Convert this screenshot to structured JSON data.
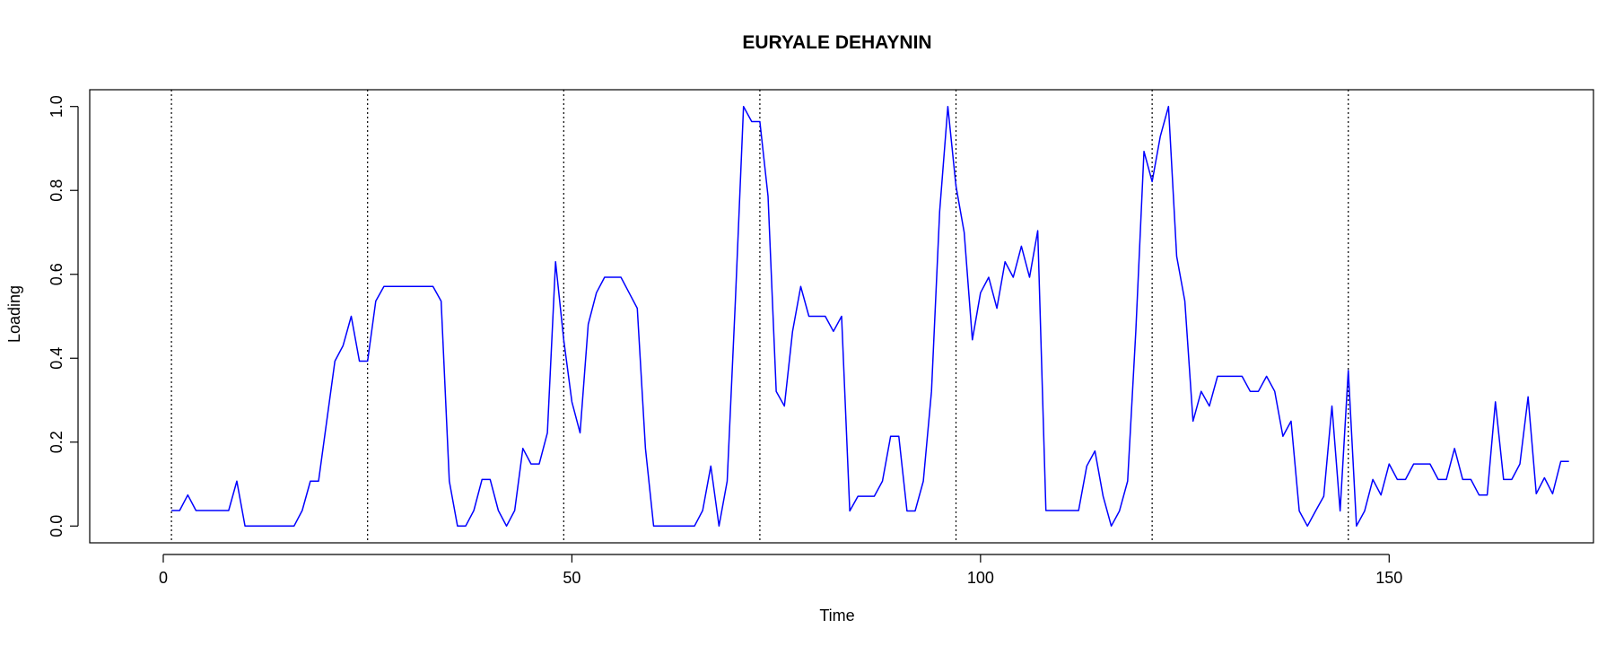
{
  "chart_data": {
    "type": "line",
    "title": "EURYALE DEHAYNIN",
    "xlabel": "Time",
    "ylabel": "Loading",
    "xlim": [
      -9,
      175
    ],
    "ylim": [
      -0.04,
      1.04
    ],
    "xticks": [
      0,
      50,
      100,
      150
    ],
    "yticks": [
      0.0,
      0.2,
      0.4,
      0.6,
      0.8,
      1.0
    ],
    "xtick_labels": [
      "0",
      "50",
      "100",
      "150"
    ],
    "ytick_labels": [
      "0.0",
      "0.2",
      "0.4",
      "0.6",
      "0.8",
      "1.0"
    ],
    "grid": false,
    "vertical_lines": [
      1,
      25,
      49,
      73,
      97,
      121,
      145
    ],
    "series": [
      {
        "color": "#0000ff",
        "x_start": 1,
        "values": [
          0.037,
          0.037,
          0.074,
          0.037,
          0.037,
          0.037,
          0.037,
          0.037,
          0.107,
          0.0,
          0.0,
          0.0,
          0.0,
          0.0,
          0.0,
          0.0,
          0.037,
          0.107,
          0.107,
          0.25,
          0.393,
          0.43,
          0.5,
          0.393,
          0.393,
          0.536,
          0.571,
          0.571,
          0.571,
          0.571,
          0.571,
          0.571,
          0.571,
          0.536,
          0.107,
          0.0,
          0.0,
          0.037,
          0.111,
          0.111,
          0.037,
          0.0,
          0.037,
          0.185,
          0.148,
          0.148,
          0.222,
          0.63,
          0.444,
          0.296,
          0.222,
          0.481,
          0.556,
          0.593,
          0.593,
          0.593,
          0.556,
          0.519,
          0.185,
          0.0,
          0.0,
          0.0,
          0.0,
          0.0,
          0.0,
          0.037,
          0.143,
          0.0,
          0.107,
          0.536,
          1.0,
          0.964,
          0.964,
          0.786,
          0.321,
          0.286,
          0.464,
          0.571,
          0.5,
          0.5,
          0.5,
          0.464,
          0.5,
          0.036,
          0.071,
          0.071,
          0.071,
          0.107,
          0.214,
          0.214,
          0.036,
          0.036,
          0.107,
          0.321,
          0.75,
          1.0,
          0.81,
          0.7,
          0.444,
          0.556,
          0.593,
          0.519,
          0.63,
          0.593,
          0.667,
          0.593,
          0.704,
          0.037,
          0.037,
          0.037,
          0.037,
          0.037,
          0.143,
          0.179,
          0.071,
          0.0,
          0.036,
          0.107,
          0.464,
          0.893,
          0.821,
          0.929,
          1.0,
          0.643,
          0.536,
          0.25,
          0.321,
          0.286,
          0.357,
          0.357,
          0.357,
          0.357,
          0.321,
          0.321,
          0.357,
          0.321,
          0.214,
          0.25,
          0.036,
          0.0,
          0.036,
          0.071,
          0.286,
          0.036,
          0.371,
          0.0,
          0.036,
          0.111,
          0.074,
          0.148,
          0.111,
          0.111,
          0.148,
          0.148,
          0.148,
          0.111,
          0.111,
          0.185,
          0.111,
          0.111,
          0.074,
          0.074,
          0.296,
          0.111,
          0.111,
          0.148,
          0.308,
          0.077,
          0.115,
          0.077,
          0.154,
          0.154
        ]
      }
    ]
  }
}
